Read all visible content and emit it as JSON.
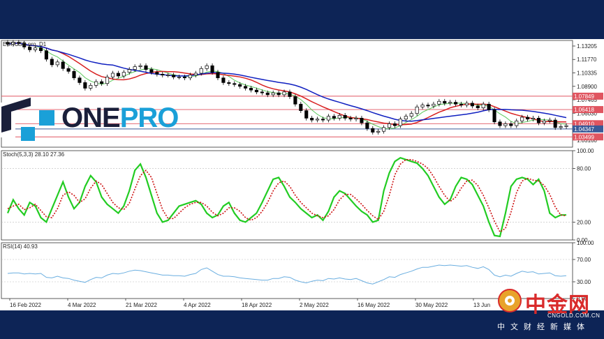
{
  "chart_data": {
    "type": "candlestick",
    "symbol_label": "EURUSD.pro, D1",
    "price_axis": {
      "ticks": [
        "1.13205",
        "1.11770",
        "1.10335",
        "1.08900",
        "1.07465",
        "1.06030",
        "1.04595",
        "1.03160"
      ],
      "ylim": [
        1.024,
        1.138
      ],
      "level_tags": [
        {
          "label": "1.07849",
          "value": 1.07849,
          "color": "#e05560"
        },
        {
          "label": "1.06418",
          "value": 1.06418,
          "color": "#e05560"
        },
        {
          "label": "1.04910",
          "value": 1.0491,
          "color": "#e05560"
        },
        {
          "label": "1.04347",
          "value": 1.04347,
          "color": "#3a5a98"
        },
        {
          "label": "1.03499",
          "value": 1.03499,
          "color": "#e05560"
        }
      ]
    },
    "x_labels": [
      "16 Feb 2022",
      "4 Mar 2022",
      "21 Mar 2022",
      "4 Apr 2022",
      "18 Apr 2022",
      "2 May 2022",
      "16 May 2022",
      "30 May 2022",
      "13 Jun"
    ],
    "ohlc_close": [
      1.134,
      1.136,
      1.135,
      1.131,
      1.128,
      1.13,
      1.127,
      1.118,
      1.112,
      1.115,
      1.108,
      1.105,
      1.098,
      1.093,
      1.087,
      1.09,
      1.094,
      1.092,
      1.099,
      1.103,
      1.1,
      1.104,
      1.107,
      1.11,
      1.111,
      1.107,
      1.104,
      1.102,
      1.101,
      1.101,
      1.099,
      1.099,
      1.098,
      1.101,
      1.103,
      1.108,
      1.111,
      1.104,
      1.098,
      1.093,
      1.092,
      1.091,
      1.089,
      1.087,
      1.085,
      1.083,
      1.082,
      1.08,
      1.082,
      1.08,
      1.083,
      1.078,
      1.07,
      1.063,
      1.055,
      1.053,
      1.054,
      1.053,
      1.057,
      1.055,
      1.058,
      1.055,
      1.054,
      1.055,
      1.05,
      1.044,
      1.04,
      1.041,
      1.045,
      1.049,
      1.047,
      1.054,
      1.057,
      1.06,
      1.067,
      1.069,
      1.068,
      1.07,
      1.073,
      1.071,
      1.072,
      1.07,
      1.069,
      1.071,
      1.068,
      1.066,
      1.07,
      1.064,
      1.051,
      1.047,
      1.049,
      1.047,
      1.052,
      1.056,
      1.054,
      1.055,
      1.05,
      1.052,
      1.053,
      1.045,
      1.046,
      1.047
    ],
    "indicators": {
      "ma_blue": "slow moving average",
      "ma_red": "medium moving average",
      "ma_green": "fast moving average"
    },
    "stoch": {
      "label": "Stoch(5,3,3) 28.10 27.36",
      "ticks": [
        "100.00",
        "80.00",
        "20.00",
        "0.00"
      ],
      "k": [
        30,
        45,
        35,
        28,
        42,
        38,
        25,
        20,
        35,
        50,
        65,
        48,
        35,
        42,
        60,
        72,
        65,
        48,
        40,
        35,
        30,
        38,
        55,
        78,
        85,
        70,
        50,
        30,
        20,
        22,
        30,
        38,
        40,
        42,
        44,
        40,
        30,
        25,
        28,
        38,
        42,
        30,
        22,
        20,
        25,
        30,
        42,
        55,
        68,
        70,
        60,
        48,
        42,
        35,
        30,
        25,
        28,
        22,
        32,
        48,
        55,
        52,
        45,
        38,
        32,
        28,
        20,
        22,
        55,
        75,
        88,
        92,
        90,
        88,
        86,
        80,
        72,
        60,
        48,
        40,
        45,
        60,
        70,
        68,
        62,
        50,
        38,
        20,
        5,
        4,
        30,
        60,
        68,
        70,
        68,
        62,
        68,
        55,
        30,
        25,
        28,
        28
      ],
      "d": [
        35,
        38,
        40,
        34,
        36,
        40,
        33,
        26,
        25,
        35,
        50,
        54,
        50,
        42,
        46,
        58,
        66,
        62,
        52,
        42,
        36,
        34,
        41,
        57,
        72,
        78,
        70,
        52,
        34,
        24,
        24,
        30,
        36,
        40,
        42,
        42,
        38,
        31,
        27,
        30,
        36,
        36,
        32,
        25,
        22,
        25,
        32,
        42,
        55,
        64,
        66,
        60,
        50,
        42,
        36,
        30,
        27,
        25,
        27,
        34,
        45,
        51,
        51,
        46,
        40,
        33,
        27,
        23,
        32,
        50,
        73,
        85,
        90,
        90,
        88,
        85,
        80,
        71,
        60,
        50,
        43,
        48,
        58,
        66,
        67,
        61,
        50,
        36,
        21,
        9,
        13,
        31,
        53,
        66,
        69,
        67,
        66,
        61,
        51,
        37,
        28,
        27
      ]
    },
    "rsi": {
      "label": "RSI(14) 40.93",
      "ticks": [
        "100.00",
        "70.00",
        "30.00",
        "0.00"
      ],
      "values": [
        45,
        46,
        46,
        44,
        45,
        44,
        45,
        38,
        37,
        40,
        37,
        36,
        33,
        31,
        29,
        34,
        38,
        37,
        42,
        45,
        44,
        46,
        49,
        51,
        50,
        48,
        46,
        44,
        42,
        42,
        41,
        41,
        40,
        43,
        45,
        52,
        55,
        49,
        43,
        40,
        40,
        39,
        37,
        36,
        35,
        34,
        33,
        33,
        36,
        36,
        39,
        38,
        33,
        30,
        28,
        31,
        33,
        32,
        36,
        35,
        37,
        35,
        34,
        36,
        32,
        28,
        26,
        30,
        34,
        39,
        38,
        43,
        46,
        49,
        53,
        56,
        56,
        58,
        60,
        59,
        60,
        59,
        58,
        59,
        56,
        54,
        57,
        52,
        42,
        39,
        42,
        40,
        45,
        49,
        47,
        48,
        44,
        45,
        46,
        41,
        40,
        41
      ]
    }
  },
  "logo": {
    "one": "ONE",
    "pro": "PRO"
  },
  "watermark": {
    "name_cn": "中金网",
    "url": "CNGOLD.COM.CN",
    "tagline": "中文财经新媒体"
  }
}
